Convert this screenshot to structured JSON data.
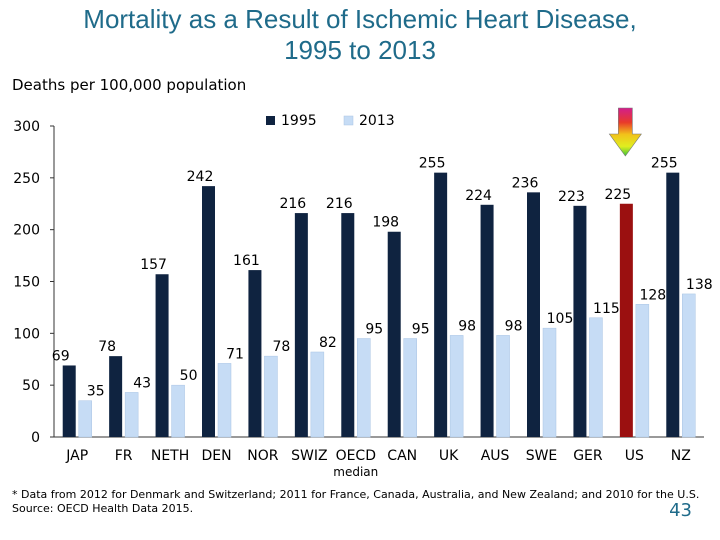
{
  "title": "Mortality as a Result of Ischemic Heart Disease,\n1995 to 2013",
  "footnote": {
    "line1": "* Data from 2012 for Denmark and Switzerland; 2011 for France, Canada, Australia, and New Zealand; and 2010 for the U.S.",
    "source": "Source: OECD Health Data 2015."
  },
  "page_number": "43",
  "colors": {
    "series_1995": "#0F2340",
    "series_2013": "#C6DCF5",
    "us_1995": "#9B1010",
    "title": "#1F6B8A"
  },
  "highlight_icon": "rainbow-down-arrow-icon",
  "chart_data": {
    "type": "bar",
    "ylabel": "Deaths per 100,000 population",
    "ylim": [
      0,
      300
    ],
    "yticks": [
      0,
      50,
      100,
      150,
      200,
      250,
      300
    ],
    "legend_position": "top-center",
    "grid": false,
    "categories": [
      "JAP",
      "FR",
      "NETH",
      "DEN",
      "NOR",
      "SWIZ",
      "OECD median",
      "CAN",
      "UK",
      "AUS",
      "SWE",
      "GER",
      "US",
      "NZ"
    ],
    "series": [
      {
        "name": "1995",
        "values": [
          69,
          78,
          157,
          242,
          161,
          216,
          216,
          198,
          255,
          224,
          236,
          223,
          225,
          255
        ]
      },
      {
        "name": "2013",
        "values": [
          35,
          43,
          50,
          71,
          78,
          82,
          95,
          95,
          98,
          98,
          105,
          115,
          128,
          138
        ]
      }
    ]
  }
}
